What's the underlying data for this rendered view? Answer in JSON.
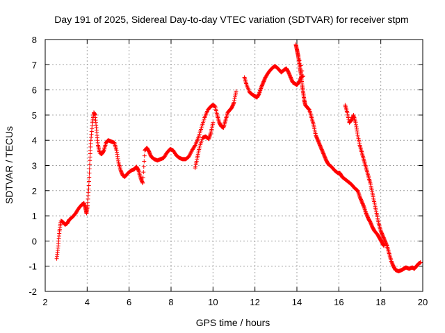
{
  "chart_data": {
    "type": "scatter",
    "title": "Day 191 of 2025, Sidereal Day-to-day VTEC variation (SDTVAR) for receiver stpm",
    "xlabel": "GPS time / hours",
    "ylabel": "SDTVAR / TECUs",
    "xlim": [
      2,
      20
    ],
    "ylim": [
      -2,
      8
    ],
    "xticks": [
      2,
      4,
      6,
      8,
      10,
      12,
      14,
      16,
      18,
      20
    ],
    "yticks": [
      -2,
      -1,
      0,
      1,
      2,
      3,
      4,
      5,
      6,
      7,
      8
    ],
    "grid": true,
    "marker": "+",
    "color": "#ff0000",
    "series": [
      {
        "name": "SDTVAR",
        "points": [
          [
            2.55,
            -0.7
          ],
          [
            2.62,
            -0.2
          ],
          [
            2.68,
            0.4
          ],
          [
            2.75,
            0.8
          ],
          [
            2.85,
            0.75
          ],
          [
            2.95,
            0.65
          ],
          [
            3.05,
            0.7
          ],
          [
            3.15,
            0.85
          ],
          [
            3.3,
            0.95
          ],
          [
            3.45,
            1.1
          ],
          [
            3.6,
            1.3
          ],
          [
            3.75,
            1.45
          ],
          [
            3.85,
            1.5
          ],
          [
            3.92,
            1.3
          ],
          [
            3.97,
            1.1
          ],
          [
            4.02,
            1.4
          ],
          [
            4.08,
            2.2
          ],
          [
            4.13,
            3.2
          ],
          [
            4.18,
            4.0
          ],
          [
            4.25,
            4.7
          ],
          [
            4.32,
            5.1
          ],
          [
            4.38,
            5.0
          ],
          [
            4.45,
            4.4
          ],
          [
            4.52,
            3.8
          ],
          [
            4.6,
            3.5
          ],
          [
            4.7,
            3.45
          ],
          [
            4.8,
            3.6
          ],
          [
            4.9,
            3.9
          ],
          [
            5.0,
            4.0
          ],
          [
            5.15,
            3.95
          ],
          [
            5.3,
            3.9
          ],
          [
            5.4,
            3.6
          ],
          [
            5.5,
            3.1
          ],
          [
            5.6,
            2.8
          ],
          [
            5.7,
            2.6
          ],
          [
            5.8,
            2.55
          ],
          [
            5.95,
            2.7
          ],
          [
            6.1,
            2.8
          ],
          [
            6.25,
            2.85
          ],
          [
            6.35,
            2.95
          ],
          [
            6.45,
            2.8
          ],
          [
            6.55,
            2.5
          ],
          [
            6.65,
            2.3
          ],
          [
            6.75,
            3.6
          ],
          [
            6.85,
            3.7
          ],
          [
            6.95,
            3.55
          ],
          [
            7.05,
            3.35
          ],
          [
            7.2,
            3.25
          ],
          [
            7.35,
            3.2
          ],
          [
            7.5,
            3.25
          ],
          [
            7.65,
            3.3
          ],
          [
            7.8,
            3.5
          ],
          [
            7.95,
            3.65
          ],
          [
            8.1,
            3.6
          ],
          [
            8.25,
            3.4
          ],
          [
            8.4,
            3.3
          ],
          [
            8.55,
            3.25
          ],
          [
            8.7,
            3.25
          ],
          [
            8.85,
            3.35
          ],
          [
            9.0,
            3.6
          ],
          [
            9.15,
            3.8
          ],
          [
            9.3,
            4.1
          ],
          [
            9.45,
            4.5
          ],
          [
            9.6,
            4.9
          ],
          [
            9.75,
            5.2
          ],
          [
            9.9,
            5.35
          ],
          [
            10.0,
            5.4
          ],
          [
            10.1,
            5.35
          ],
          [
            10.2,
            5.0
          ],
          [
            10.3,
            4.7
          ],
          [
            10.4,
            4.55
          ],
          [
            10.5,
            4.5
          ],
          [
            10.6,
            4.8
          ],
          [
            10.7,
            5.1
          ],
          [
            10.8,
            5.2
          ],
          [
            10.9,
            5.3
          ],
          [
            11.0,
            5.5
          ],
          [
            11.1,
            5.95
          ],
          [
            9.15,
            2.9
          ],
          [
            9.25,
            3.3
          ],
          [
            9.35,
            3.7
          ],
          [
            9.5,
            4.1
          ],
          [
            9.65,
            4.15
          ],
          [
            9.8,
            4.05
          ],
          [
            9.9,
            4.3
          ],
          [
            10.0,
            4.7
          ],
          [
            11.5,
            6.5
          ],
          [
            11.6,
            6.2
          ],
          [
            11.75,
            5.9
          ],
          [
            11.9,
            5.8
          ],
          [
            12.0,
            5.75
          ],
          [
            12.1,
            5.7
          ],
          [
            12.2,
            5.85
          ],
          [
            12.3,
            6.1
          ],
          [
            12.4,
            6.3
          ],
          [
            12.5,
            6.5
          ],
          [
            12.65,
            6.7
          ],
          [
            12.8,
            6.85
          ],
          [
            12.95,
            6.95
          ],
          [
            13.1,
            6.85
          ],
          [
            13.25,
            6.7
          ],
          [
            13.4,
            6.8
          ],
          [
            13.5,
            6.85
          ],
          [
            13.6,
            6.7
          ],
          [
            13.7,
            6.5
          ],
          [
            13.8,
            6.3
          ],
          [
            13.9,
            6.25
          ],
          [
            14.0,
            6.2
          ],
          [
            14.1,
            6.3
          ],
          [
            14.2,
            6.5
          ],
          [
            14.3,
            6.55
          ],
          [
            13.95,
            7.8
          ],
          [
            14.0,
            7.6
          ],
          [
            14.05,
            7.4
          ],
          [
            14.1,
            7.15
          ],
          [
            14.15,
            6.85
          ],
          [
            14.2,
            6.6
          ],
          [
            14.25,
            6.2
          ],
          [
            14.3,
            5.9
          ],
          [
            14.35,
            5.6
          ],
          [
            14.4,
            5.4
          ],
          [
            14.5,
            5.3
          ],
          [
            14.6,
            5.2
          ],
          [
            14.7,
            4.9
          ],
          [
            14.8,
            4.6
          ],
          [
            14.9,
            4.2
          ],
          [
            15.0,
            4.0
          ],
          [
            15.1,
            3.8
          ],
          [
            15.2,
            3.6
          ],
          [
            15.3,
            3.4
          ],
          [
            15.4,
            3.2
          ],
          [
            15.5,
            3.05
          ],
          [
            15.65,
            2.95
          ],
          [
            15.8,
            2.8
          ],
          [
            15.95,
            2.7
          ],
          [
            16.05,
            2.7
          ],
          [
            16.15,
            2.55
          ],
          [
            16.3,
            2.45
          ],
          [
            16.45,
            2.35
          ],
          [
            16.6,
            2.25
          ],
          [
            16.75,
            2.1
          ],
          [
            16.9,
            2.0
          ],
          [
            17.0,
            1.75
          ],
          [
            17.1,
            1.55
          ],
          [
            17.2,
            1.35
          ],
          [
            17.3,
            1.1
          ],
          [
            17.4,
            0.9
          ],
          [
            17.5,
            0.75
          ],
          [
            17.6,
            0.55
          ],
          [
            17.7,
            0.4
          ],
          [
            17.85,
            0.25
          ],
          [
            17.95,
            0.1
          ],
          [
            18.05,
            -0.05
          ],
          [
            18.15,
            -0.2
          ],
          [
            16.3,
            5.4
          ],
          [
            16.4,
            5.1
          ],
          [
            16.5,
            4.7
          ],
          [
            16.6,
            4.8
          ],
          [
            16.7,
            5.0
          ],
          [
            16.8,
            4.7
          ],
          [
            16.9,
            4.2
          ],
          [
            17.0,
            3.8
          ],
          [
            17.1,
            3.5
          ],
          [
            17.2,
            3.2
          ],
          [
            17.3,
            2.9
          ],
          [
            17.4,
            2.6
          ],
          [
            17.5,
            2.3
          ],
          [
            17.6,
            1.9
          ],
          [
            17.7,
            1.5
          ],
          [
            17.8,
            1.1
          ],
          [
            17.9,
            0.7
          ],
          [
            18.0,
            0.4
          ],
          [
            18.1,
            0.2
          ],
          [
            18.2,
            0.0
          ],
          [
            18.3,
            -0.2
          ],
          [
            18.4,
            -0.5
          ],
          [
            18.5,
            -0.8
          ],
          [
            18.6,
            -1.0
          ],
          [
            18.7,
            -1.15
          ],
          [
            18.85,
            -1.2
          ],
          [
            19.0,
            -1.15
          ],
          [
            19.1,
            -1.1
          ],
          [
            19.2,
            -1.05
          ],
          [
            19.35,
            -1.1
          ],
          [
            19.5,
            -1.05
          ],
          [
            19.6,
            -1.1
          ],
          [
            19.7,
            -1.0
          ],
          [
            19.8,
            -0.9
          ],
          [
            19.9,
            -0.85
          ]
        ]
      }
    ]
  }
}
